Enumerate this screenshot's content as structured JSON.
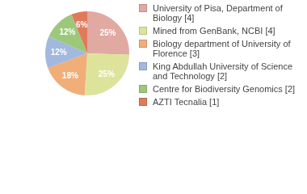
{
  "chart_data": {
    "type": "pie",
    "categories": [
      "University of Pisa, Department of Biology [4]",
      "Mined from GenBank, NCBI [4]",
      "Biology department of University of Florence [3]",
      "King Abdullah University of Science and Technology [2]",
      "Centre for Biodiversity Genomics [2]",
      "AZTI Tecnalia [1]"
    ],
    "values": [
      25,
      25,
      18,
      12,
      12,
      6
    ],
    "value_labels": [
      "25%",
      "25%",
      "18%",
      "12%",
      "12%",
      "6%"
    ],
    "colors": [
      "#e0a9a1",
      "#dde39b",
      "#f0ae79",
      "#a2b8de",
      "#9dc87b",
      "#e07a5b"
    ],
    "data_labels": true,
    "legend": "right"
  }
}
